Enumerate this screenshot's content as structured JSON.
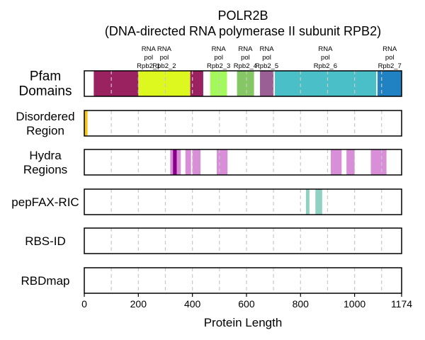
{
  "chart_data": {
    "type": "bar",
    "title_lines": [
      "POLR2B",
      "(DNA-directed RNA polymerase II subunit RPB2)"
    ],
    "xlabel": "Protein Length",
    "xlim": [
      0,
      1174
    ],
    "xticks": [
      0,
      200,
      400,
      600,
      800,
      1000
    ],
    "xtick_labels": [
      "0",
      "200",
      "400",
      "600",
      "800",
      "1000"
    ],
    "xmax_label": "1174",
    "gridlines": [
      100,
      200,
      300,
      400,
      500,
      600,
      700,
      800,
      900,
      1000,
      1100
    ],
    "tracks": [
      {
        "label_lines": [
          "Pfam",
          "Domains"
        ],
        "segments": [
          {
            "start": 35,
            "end": 200,
            "color": "#9b2260"
          },
          {
            "start": 200,
            "end": 392,
            "color": "#dcf81e"
          },
          {
            "start": 392,
            "end": 440,
            "color": "#9b2260"
          },
          {
            "start": 466,
            "end": 528,
            "color": "#a3f85a"
          },
          {
            "start": 565,
            "end": 628,
            "color": "#86c765"
          },
          {
            "start": 650,
            "end": 700,
            "color": "#9b5f95"
          },
          {
            "start": 705,
            "end": 1080,
            "color": "#4bbfc8"
          },
          {
            "start": 1085,
            "end": 1174,
            "color": "#2182c3"
          }
        ],
        "annotations": [
          {
            "x": 238,
            "lines": [
              "RNA",
              "pol",
              "Rpb2_1"
            ]
          },
          {
            "x": 296,
            "lines": [
              "RNA",
              "pol",
              "Rpb2_2"
            ]
          },
          {
            "x": 497,
            "lines": [
              "RNA",
              "pol",
              "Rpb2_3"
            ]
          },
          {
            "x": 596,
            "lines": [
              "RNA",
              "pol",
              "Rpb2_4"
            ]
          },
          {
            "x": 675,
            "lines": [
              "RNA",
              "pol",
              "Rpb2_5"
            ]
          },
          {
            "x": 892,
            "lines": [
              "RNA",
              "pol",
              "Rpb2_6"
            ]
          },
          {
            "x": 1130,
            "lines": [
              "RNA",
              "pol",
              "Rpb2_7"
            ]
          }
        ]
      },
      {
        "label_lines": [
          "Disordered",
          "Region"
        ],
        "segments": [
          {
            "start": 0,
            "end": 12,
            "color": "#f5c518"
          }
        ]
      },
      {
        "label_lines": [
          "Hydra",
          "Regions"
        ],
        "segments": [
          {
            "start": 318,
            "end": 328,
            "color": "#d98fd8"
          },
          {
            "start": 328,
            "end": 342,
            "color": "#8b008b"
          },
          {
            "start": 342,
            "end": 357,
            "color": "#d98fd8"
          },
          {
            "start": 374,
            "end": 395,
            "color": "#d98fd8"
          },
          {
            "start": 400,
            "end": 430,
            "color": "#d98fd8"
          },
          {
            "start": 490,
            "end": 530,
            "color": "#d98fd8"
          },
          {
            "start": 912,
            "end": 952,
            "color": "#d98fd8"
          },
          {
            "start": 970,
            "end": 1000,
            "color": "#d98fd8"
          },
          {
            "start": 1060,
            "end": 1118,
            "color": "#d98fd8"
          }
        ]
      },
      {
        "label_lines": [
          "pepFAX-RIC"
        ],
        "segments": [
          {
            "start": 820,
            "end": 833,
            "color": "#8fd1c2"
          },
          {
            "start": 855,
            "end": 880,
            "color": "#8fd1c2"
          }
        ]
      },
      {
        "label_lines": [
          "RBS-ID"
        ],
        "segments": []
      },
      {
        "label_lines": [
          "RBDmap"
        ],
        "segments": []
      }
    ]
  }
}
